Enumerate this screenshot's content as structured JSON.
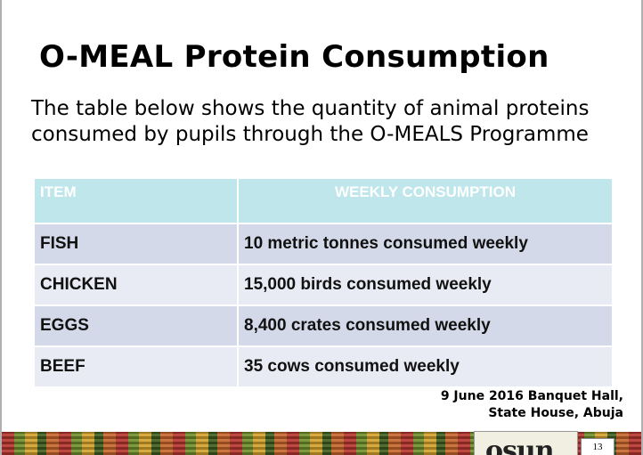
{
  "slide": {
    "title": "O-MEAL Protein Consumption",
    "intro": "The table below shows the quantity of animal proteins consumed by  pupils through the O-MEALS Programme",
    "table": {
      "headers": [
        "ITEM",
        "WEEKLY CONSUMPTION"
      ],
      "rows": [
        [
          "FISH",
          "10 metric tonnes consumed weekly"
        ],
        [
          "CHICKEN",
          "15,000 birds consumed weekly"
        ],
        [
          "EGGS",
          "8,400 crates consumed weekly"
        ],
        [
          "BEEF",
          "35 cows consumed weekly"
        ]
      ]
    },
    "footer_line1": "9 June 2016 Banquet Hall,",
    "footer_line2": "State House, Abuja",
    "logo_text": "osun",
    "page_number": "13"
  }
}
